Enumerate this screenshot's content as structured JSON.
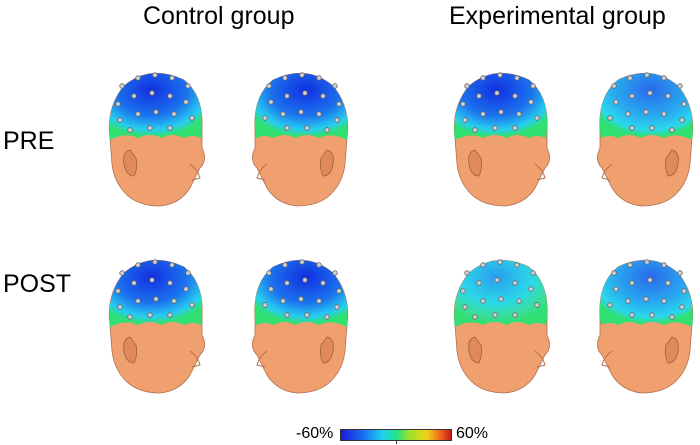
{
  "titles": {
    "control": "Control group",
    "experimental": "Experimental group"
  },
  "rows": {
    "pre": "PRE",
    "post": "POST"
  },
  "colorbar": {
    "min_label": "-60%",
    "max_label": "60%"
  },
  "colors": {
    "skin": "#f0a06e",
    "deep_blue": "#1a3ae0",
    "cyan": "#2ad7f2",
    "green": "#2ce07a"
  },
  "heads": [
    {
      "row": "pre",
      "group": "control",
      "facing": "right",
      "activity": "strong-blue"
    },
    {
      "row": "pre",
      "group": "control",
      "facing": "left",
      "activity": "strong-blue"
    },
    {
      "row": "pre",
      "group": "experimental",
      "facing": "right",
      "activity": "strong-blue"
    },
    {
      "row": "pre",
      "group": "experimental",
      "facing": "left",
      "activity": "medium-blue"
    },
    {
      "row": "post",
      "group": "control",
      "facing": "right",
      "activity": "strong-blue"
    },
    {
      "row": "post",
      "group": "control",
      "facing": "left",
      "activity": "strong-blue"
    },
    {
      "row": "post",
      "group": "experimental",
      "facing": "right",
      "activity": "weak-cyan"
    },
    {
      "row": "post",
      "group": "experimental",
      "facing": "left",
      "activity": "medium-blue"
    }
  ]
}
